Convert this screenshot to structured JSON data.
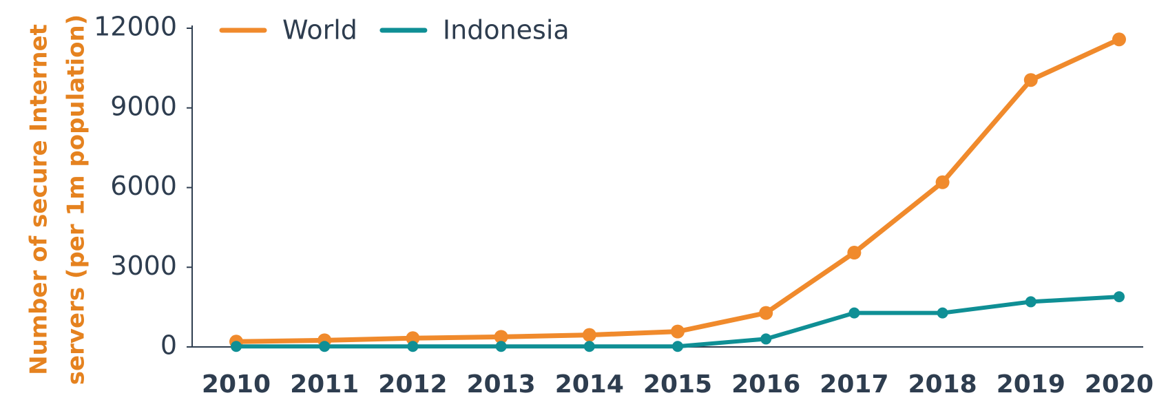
{
  "chart_data": {
    "type": "line",
    "y_label": [
      "Number of secure Internet",
      "servers (per 1m population)"
    ],
    "categories": [
      "2010",
      "2011",
      "2012",
      "2013",
      "2014",
      "2015",
      "2016",
      "2017",
      "2018",
      "2019",
      "2020"
    ],
    "series": [
      {
        "name": "World",
        "color": "#f08a2c",
        "values": [
          200,
          250,
          330,
          380,
          450,
          580,
          1280,
          3550,
          6200,
          10050,
          11580
        ]
      },
      {
        "name": "Indonesia",
        "color": "#0f8f95",
        "values": [
          20,
          20,
          20,
          20,
          20,
          20,
          300,
          1280,
          1280,
          1700,
          1890
        ]
      }
    ],
    "ylim": [
      0,
      12000
    ],
    "yticks": [
      0,
      3000,
      6000,
      9000,
      12000
    ],
    "grid": false
  }
}
